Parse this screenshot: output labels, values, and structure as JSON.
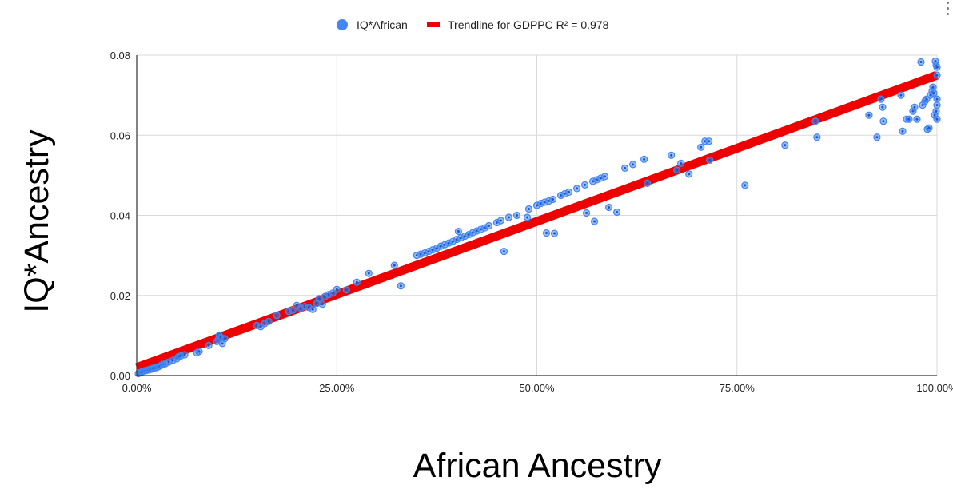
{
  "chart_data": {
    "type": "scatter",
    "title": "",
    "xlabel": "African Ancestry",
    "ylabel": "IQ*Ancestry",
    "xlim": [
      0,
      1
    ],
    "ylim": [
      0,
      0.08
    ],
    "x_ticks": [
      "0.00%",
      "25.00%",
      "50.00%",
      "75.00%",
      "100.00%"
    ],
    "y_ticks": [
      "0.00",
      "0.02",
      "0.04",
      "0.06",
      "0.08"
    ],
    "grid": true,
    "legend_position": "top",
    "series": [
      {
        "name": "IQ*African",
        "color": "#4285f4",
        "points": [
          [
            0.002,
            0.0005
          ],
          [
            0.004,
            0.0007
          ],
          [
            0.006,
            0.0009
          ],
          [
            0.008,
            0.0011
          ],
          [
            0.01,
            0.0012
          ],
          [
            0.012,
            0.0013
          ],
          [
            0.014,
            0.0014
          ],
          [
            0.016,
            0.0015
          ],
          [
            0.018,
            0.0016
          ],
          [
            0.02,
            0.0018
          ],
          [
            0.022,
            0.0019
          ],
          [
            0.025,
            0.002
          ],
          [
            0.028,
            0.0023
          ],
          [
            0.03,
            0.0025
          ],
          [
            0.033,
            0.0028
          ],
          [
            0.036,
            0.003
          ],
          [
            0.04,
            0.0034
          ],
          [
            0.045,
            0.0038
          ],
          [
            0.05,
            0.0042
          ],
          [
            0.052,
            0.0047
          ],
          [
            0.055,
            0.0049
          ],
          [
            0.06,
            0.0052
          ],
          [
            0.075,
            0.0057
          ],
          [
            0.078,
            0.006
          ],
          [
            0.09,
            0.0075
          ],
          [
            0.1,
            0.0085
          ],
          [
            0.102,
            0.009
          ],
          [
            0.103,
            0.01
          ],
          [
            0.105,
            0.0095
          ],
          [
            0.107,
            0.008
          ],
          [
            0.11,
            0.0092
          ],
          [
            0.15,
            0.0125
          ],
          [
            0.155,
            0.0122
          ],
          [
            0.16,
            0.013
          ],
          [
            0.165,
            0.0135
          ],
          [
            0.175,
            0.015
          ],
          [
            0.19,
            0.016
          ],
          [
            0.195,
            0.0163
          ],
          [
            0.2,
            0.0175
          ],
          [
            0.205,
            0.0168
          ],
          [
            0.21,
            0.0172
          ],
          [
            0.215,
            0.017
          ],
          [
            0.22,
            0.0165
          ],
          [
            0.225,
            0.018
          ],
          [
            0.228,
            0.0192
          ],
          [
            0.232,
            0.0178
          ],
          [
            0.235,
            0.0197
          ],
          [
            0.24,
            0.0202
          ],
          [
            0.245,
            0.0206
          ],
          [
            0.25,
            0.0215
          ],
          [
            0.262,
            0.0214
          ],
          [
            0.275,
            0.0233
          ],
          [
            0.29,
            0.0255
          ],
          [
            0.322,
            0.0275
          ],
          [
            0.33,
            0.0224
          ],
          [
            0.35,
            0.03
          ],
          [
            0.355,
            0.0303
          ],
          [
            0.36,
            0.0306
          ],
          [
            0.365,
            0.031
          ],
          [
            0.37,
            0.0314
          ],
          [
            0.375,
            0.0318
          ],
          [
            0.38,
            0.0323
          ],
          [
            0.385,
            0.0327
          ],
          [
            0.39,
            0.0331
          ],
          [
            0.395,
            0.0335
          ],
          [
            0.4,
            0.034
          ],
          [
            0.402,
            0.036
          ],
          [
            0.405,
            0.0344
          ],
          [
            0.41,
            0.0348
          ],
          [
            0.415,
            0.0352
          ],
          [
            0.42,
            0.0357
          ],
          [
            0.425,
            0.0361
          ],
          [
            0.43,
            0.0365
          ],
          [
            0.435,
            0.0369
          ],
          [
            0.44,
            0.0374
          ],
          [
            0.45,
            0.0382
          ],
          [
            0.455,
            0.0387
          ],
          [
            0.459,
            0.031
          ],
          [
            0.465,
            0.0395
          ],
          [
            0.475,
            0.04
          ],
          [
            0.488,
            0.0395
          ],
          [
            0.49,
            0.0416
          ],
          [
            0.5,
            0.0425
          ],
          [
            0.505,
            0.043
          ],
          [
            0.51,
            0.0433
          ],
          [
            0.512,
            0.0356
          ],
          [
            0.515,
            0.0436
          ],
          [
            0.52,
            0.044
          ],
          [
            0.522,
            0.0355
          ],
          [
            0.53,
            0.045
          ],
          [
            0.535,
            0.0454
          ],
          [
            0.54,
            0.0458
          ],
          [
            0.55,
            0.0467
          ],
          [
            0.56,
            0.0476
          ],
          [
            0.562,
            0.0406
          ],
          [
            0.57,
            0.0485
          ],
          [
            0.572,
            0.0385
          ],
          [
            0.575,
            0.0489
          ],
          [
            0.58,
            0.0493
          ],
          [
            0.585,
            0.0497
          ],
          [
            0.59,
            0.042
          ],
          [
            0.6,
            0.0408
          ],
          [
            0.61,
            0.0518
          ],
          [
            0.62,
            0.0527
          ],
          [
            0.634,
            0.054
          ],
          [
            0.638,
            0.048
          ],
          [
            0.668,
            0.055
          ],
          [
            0.675,
            0.0513
          ],
          [
            0.68,
            0.053
          ],
          [
            0.69,
            0.0503
          ],
          [
            0.705,
            0.057
          ],
          [
            0.71,
            0.0585
          ],
          [
            0.715,
            0.0585
          ],
          [
            0.716,
            0.0538
          ],
          [
            0.76,
            0.0475
          ],
          [
            0.81,
            0.0575
          ],
          [
            0.85,
            0.0595
          ],
          [
            0.848,
            0.0635
          ],
          [
            0.915,
            0.065
          ],
          [
            0.925,
            0.0595
          ],
          [
            0.93,
            0.069
          ],
          [
            0.932,
            0.067
          ],
          [
            0.933,
            0.0635
          ],
          [
            0.955,
            0.07
          ],
          [
            0.957,
            0.061
          ],
          [
            0.962,
            0.064
          ],
          [
            0.965,
            0.064
          ],
          [
            0.97,
            0.066
          ],
          [
            0.972,
            0.067
          ],
          [
            0.975,
            0.064
          ],
          [
            0.98,
            0.0783
          ],
          [
            0.982,
            0.0675
          ],
          [
            0.985,
            0.0685
          ],
          [
            0.987,
            0.069
          ],
          [
            0.988,
            0.0615
          ],
          [
            0.99,
            0.0618
          ],
          [
            0.992,
            0.07
          ],
          [
            0.994,
            0.071
          ],
          [
            0.995,
            0.072
          ],
          [
            0.996,
            0.0705
          ],
          [
            0.997,
            0.065
          ],
          [
            0.998,
            0.0785
          ],
          [
            0.999,
            0.0775
          ],
          [
            0.999,
            0.066
          ],
          [
            1.0,
            0.075
          ],
          [
            1.0,
            0.069
          ],
          [
            1.0,
            0.0675
          ],
          [
            1.0,
            0.064
          ],
          [
            1.0,
            0.077
          ]
        ]
      },
      {
        "name": "Trendline for GDPPC R² = 0.978",
        "type": "trendline",
        "color": "#ee0000",
        "x": [
          0,
          1
        ],
        "y": [
          0.002,
          0.075
        ]
      }
    ]
  }
}
